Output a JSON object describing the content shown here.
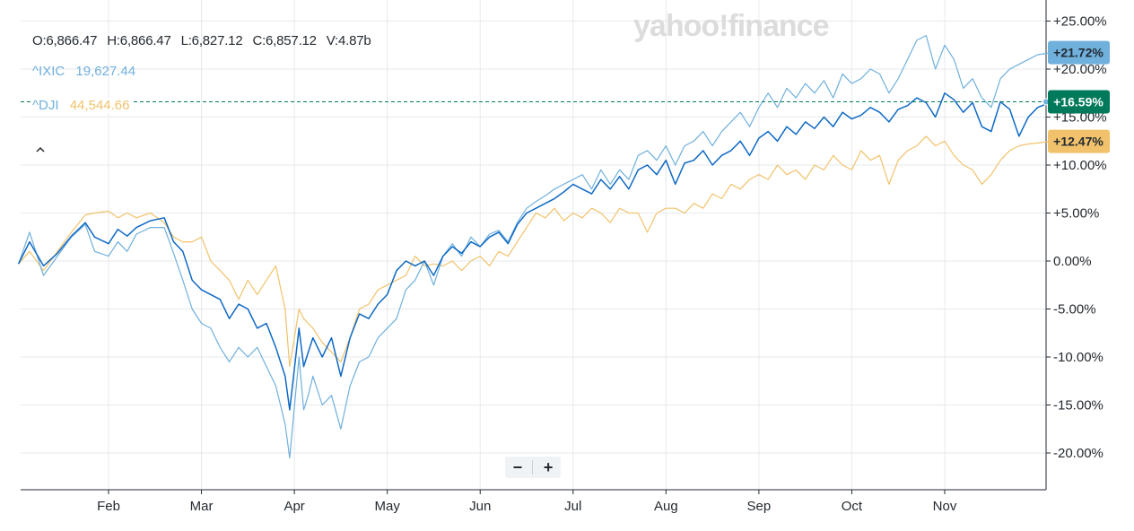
{
  "watermark": "yahoo!finance",
  "ohlc": {
    "open": "O:6,866.47",
    "high": "H:6,866.47",
    "low": "L:6,827.12",
    "close": "C:6,857.12",
    "volume": "V:4.87b"
  },
  "legend": [
    {
      "symbol": "^IXIC",
      "value": "19,627.44",
      "color": "#6fb0dc"
    },
    {
      "symbol": "^DJI",
      "value": "44,544.66",
      "color": "#f1c26b"
    }
  ],
  "collapse_icon": "chevron-up-icon",
  "zoom": {
    "minus": "−",
    "plus": "+"
  },
  "colors": {
    "main": "#0f69c4",
    "ixic": "#6fb0dc",
    "dji": "#f1c26b",
    "main_badge": "#007a5a",
    "grid": "#e6e9eb",
    "axis": "#232a31"
  },
  "chart_data": {
    "type": "line",
    "y_unit": "%",
    "ylim": [
      -22,
      24
    ],
    "y_ticks": [
      -20,
      -15,
      -10,
      -5,
      0,
      5,
      10,
      15,
      20,
      25
    ],
    "y_tick_labels": [
      "-20.00%",
      "-15.00%",
      "-10.00%",
      "-5.00%",
      "0.00%",
      "+5.00%",
      "+10.00%",
      "+15.00%",
      "+20.00%",
      "+25.00%"
    ],
    "x_ticks": [
      "Feb",
      "Mar",
      "Apr",
      "May",
      "Jun",
      "Jul",
      "Aug",
      "Sep",
      "Oct",
      "Nov"
    ],
    "x_tick_pos": [
      1,
      2,
      3,
      4,
      5,
      6,
      7,
      8,
      9,
      10
    ],
    "xlim": [
      0.03,
      11.15
    ],
    "grid": true,
    "end_labels": [
      {
        "series": "^IXIC",
        "value": 21.72,
        "label": "+21.72%"
      },
      {
        "series": "main",
        "value": 16.59,
        "label": "+16.59%"
      },
      {
        "series": "^DJI",
        "value": 12.47,
        "label": "+12.47%"
      }
    ],
    "series": [
      {
        "key": "main",
        "x": [
          0.03,
          0.15,
          0.3,
          0.45,
          0.6,
          0.75,
          0.85,
          1.0,
          1.1,
          1.2,
          1.3,
          1.45,
          1.6,
          1.7,
          1.8,
          1.9,
          2.0,
          2.1,
          2.2,
          2.3,
          2.4,
          2.5,
          2.6,
          2.7,
          2.8,
          2.9,
          2.95,
          3.05,
          3.1,
          3.15,
          3.2,
          3.3,
          3.4,
          3.5,
          3.6,
          3.7,
          3.8,
          3.9,
          4.0,
          4.1,
          4.2,
          4.3,
          4.4,
          4.5,
          4.6,
          4.7,
          4.8,
          4.9,
          5.0,
          5.1,
          5.2,
          5.3,
          5.4,
          5.5,
          5.6,
          5.7,
          5.8,
          5.9,
          6.0,
          6.1,
          6.2,
          6.3,
          6.4,
          6.5,
          6.6,
          6.7,
          6.8,
          6.9,
          7.0,
          7.1,
          7.2,
          7.3,
          7.4,
          7.5,
          7.6,
          7.7,
          7.8,
          7.9,
          8.0,
          8.1,
          8.2,
          8.3,
          8.4,
          8.5,
          8.6,
          8.7,
          8.8,
          8.9,
          9.0,
          9.1,
          9.2,
          9.3,
          9.4,
          9.5,
          9.6,
          9.7,
          9.8,
          9.9,
          10.0,
          10.1,
          10.2,
          10.3,
          10.4,
          10.5,
          10.6,
          10.7,
          10.8,
          10.9,
          11.0,
          11.15
        ],
        "values": [
          -0.3,
          2.0,
          -0.5,
          0.8,
          2.6,
          4.0,
          2.5,
          1.8,
          3.3,
          2.6,
          3.5,
          4.2,
          4.5,
          2.0,
          1.0,
          -2.0,
          -3.0,
          -3.5,
          -4.0,
          -6.0,
          -4.5,
          -5.0,
          -7.0,
          -6.5,
          -9.0,
          -12.0,
          -15.5,
          -7.0,
          -11.0,
          -9.5,
          -8.0,
          -10.0,
          -8.0,
          -12.0,
          -8.0,
          -5.5,
          -6.0,
          -4.5,
          -3.5,
          -1.0,
          0.0,
          -0.5,
          0.0,
          -1.5,
          0.5,
          1.5,
          0.8,
          2.0,
          1.5,
          2.5,
          3.0,
          1.8,
          3.8,
          5.0,
          5.5,
          6.0,
          6.5,
          7.2,
          8.0,
          7.5,
          7.0,
          8.5,
          7.5,
          8.8,
          7.5,
          9.5,
          10.0,
          9.0,
          10.5,
          8.0,
          10.2,
          10.5,
          11.5,
          10.0,
          11.0,
          11.5,
          12.5,
          11.0,
          12.8,
          13.5,
          12.5,
          14.0,
          13.2,
          14.5,
          13.8,
          15.0,
          14.0,
          15.5,
          14.8,
          15.2,
          16.0,
          15.5,
          14.5,
          15.8,
          16.2,
          17.0,
          16.5,
          15.0,
          17.5,
          16.8,
          15.5,
          16.5,
          14.0,
          13.5,
          16.6,
          15.8,
          13.0,
          15.0,
          16.0,
          16.59
        ]
      },
      {
        "key": "ixic",
        "x": [
          0.03,
          0.15,
          0.3,
          0.45,
          0.6,
          0.75,
          0.85,
          1.0,
          1.1,
          1.2,
          1.3,
          1.45,
          1.6,
          1.7,
          1.8,
          1.9,
          2.0,
          2.1,
          2.2,
          2.3,
          2.4,
          2.5,
          2.6,
          2.7,
          2.8,
          2.9,
          2.95,
          3.05,
          3.1,
          3.15,
          3.2,
          3.3,
          3.4,
          3.5,
          3.6,
          3.7,
          3.8,
          3.9,
          4.0,
          4.1,
          4.2,
          4.3,
          4.4,
          4.5,
          4.6,
          4.7,
          4.8,
          4.9,
          5.0,
          5.1,
          5.2,
          5.3,
          5.4,
          5.5,
          5.6,
          5.7,
          5.8,
          5.9,
          6.0,
          6.1,
          6.2,
          6.3,
          6.4,
          6.5,
          6.6,
          6.7,
          6.8,
          6.9,
          7.0,
          7.1,
          7.2,
          7.3,
          7.4,
          7.5,
          7.6,
          7.7,
          7.8,
          7.9,
          8.0,
          8.1,
          8.2,
          8.3,
          8.4,
          8.5,
          8.6,
          8.7,
          8.8,
          8.9,
          9.0,
          9.1,
          9.2,
          9.3,
          9.4,
          9.5,
          9.6,
          9.7,
          9.8,
          9.9,
          10.0,
          10.1,
          10.2,
          10.3,
          10.4,
          10.5,
          10.6,
          10.7,
          10.8,
          10.9,
          11.0,
          11.15
        ],
        "values": [
          -0.3,
          3.0,
          -1.5,
          0.5,
          2.5,
          3.8,
          1.0,
          0.5,
          2.0,
          1.0,
          2.8,
          3.5,
          3.5,
          0.8,
          -2.0,
          -5.0,
          -6.5,
          -7.0,
          -9.0,
          -10.5,
          -9.0,
          -10.0,
          -9.0,
          -11.0,
          -13.0,
          -17.0,
          -20.5,
          -10.0,
          -15.5,
          -14.0,
          -12.0,
          -15.0,
          -14.0,
          -17.5,
          -13.0,
          -10.5,
          -10.0,
          -8.0,
          -7.0,
          -6.0,
          -3.0,
          -2.0,
          0.0,
          -2.5,
          0.5,
          1.8,
          0.5,
          2.5,
          1.5,
          2.8,
          3.2,
          2.0,
          4.0,
          5.5,
          6.2,
          6.8,
          7.5,
          8.0,
          8.5,
          9.0,
          7.5,
          9.5,
          8.0,
          9.5,
          8.5,
          11.0,
          11.5,
          10.5,
          12.0,
          10.0,
          12.0,
          12.5,
          13.5,
          12.0,
          13.5,
          14.5,
          15.5,
          14.0,
          16.0,
          17.5,
          16.0,
          18.0,
          17.0,
          18.5,
          17.5,
          18.8,
          17.0,
          19.5,
          18.5,
          19.0,
          20.0,
          19.5,
          17.5,
          19.0,
          21.0,
          23.0,
          23.5,
          20.0,
          22.5,
          21.0,
          18.0,
          19.0,
          17.0,
          16.0,
          19.0,
          20.0,
          20.5,
          21.0,
          21.5,
          21.72
        ]
      },
      {
        "key": "dji",
        "x": [
          0.03,
          0.15,
          0.3,
          0.45,
          0.6,
          0.75,
          0.85,
          1.0,
          1.1,
          1.2,
          1.3,
          1.45,
          1.6,
          1.7,
          1.8,
          1.9,
          2.0,
          2.1,
          2.2,
          2.3,
          2.4,
          2.5,
          2.6,
          2.7,
          2.8,
          2.9,
          2.95,
          3.05,
          3.1,
          3.15,
          3.2,
          3.3,
          3.4,
          3.5,
          3.6,
          3.7,
          3.8,
          3.9,
          4.0,
          4.1,
          4.2,
          4.3,
          4.4,
          4.5,
          4.6,
          4.7,
          4.8,
          4.9,
          5.0,
          5.1,
          5.2,
          5.3,
          5.4,
          5.5,
          5.6,
          5.7,
          5.8,
          5.9,
          6.0,
          6.1,
          6.2,
          6.3,
          6.4,
          6.5,
          6.6,
          6.7,
          6.8,
          6.9,
          7.0,
          7.1,
          7.2,
          7.3,
          7.4,
          7.5,
          7.6,
          7.7,
          7.8,
          7.9,
          8.0,
          8.1,
          8.2,
          8.3,
          8.4,
          8.5,
          8.6,
          8.7,
          8.8,
          8.9,
          9.0,
          9.1,
          9.2,
          9.3,
          9.4,
          9.5,
          9.6,
          9.7,
          9.8,
          9.9,
          10.0,
          10.1,
          10.2,
          10.3,
          10.4,
          10.5,
          10.6,
          10.7,
          10.8,
          10.9,
          11.0,
          11.15
        ],
        "values": [
          -0.3,
          1.0,
          -1.0,
          1.0,
          3.0,
          4.8,
          5.0,
          5.2,
          4.5,
          5.0,
          4.5,
          5.0,
          4.0,
          2.5,
          2.0,
          2.0,
          2.5,
          0.0,
          -1.0,
          -2.0,
          -4.0,
          -2.0,
          -3.5,
          -2.0,
          -0.5,
          -5.0,
          -11.0,
          -5.0,
          -6.0,
          -6.5,
          -7.0,
          -8.5,
          -9.5,
          -10.5,
          -8.0,
          -5.0,
          -4.5,
          -3.0,
          -2.5,
          -2.0,
          -1.5,
          0.5,
          -0.5,
          -0.3,
          -0.5,
          0.0,
          -1.0,
          0.0,
          0.5,
          -0.5,
          1.0,
          0.5,
          2.0,
          3.5,
          5.0,
          4.5,
          5.5,
          4.2,
          5.0,
          4.5,
          5.5,
          5.0,
          4.0,
          5.5,
          5.0,
          5.0,
          3.0,
          5.0,
          5.5,
          5.5,
          5.0,
          6.0,
          5.5,
          7.0,
          6.5,
          8.0,
          7.5,
          8.5,
          9.0,
          8.5,
          10.0,
          9.0,
          9.5,
          8.5,
          10.0,
          9.5,
          11.0,
          10.0,
          9.5,
          11.5,
          10.5,
          11.0,
          8.0,
          10.5,
          11.5,
          12.0,
          13.0,
          12.0,
          12.5,
          11.0,
          10.0,
          9.5,
          8.0,
          9.0,
          10.5,
          11.5,
          12.0,
          12.2,
          12.3,
          12.47
        ]
      }
    ]
  }
}
